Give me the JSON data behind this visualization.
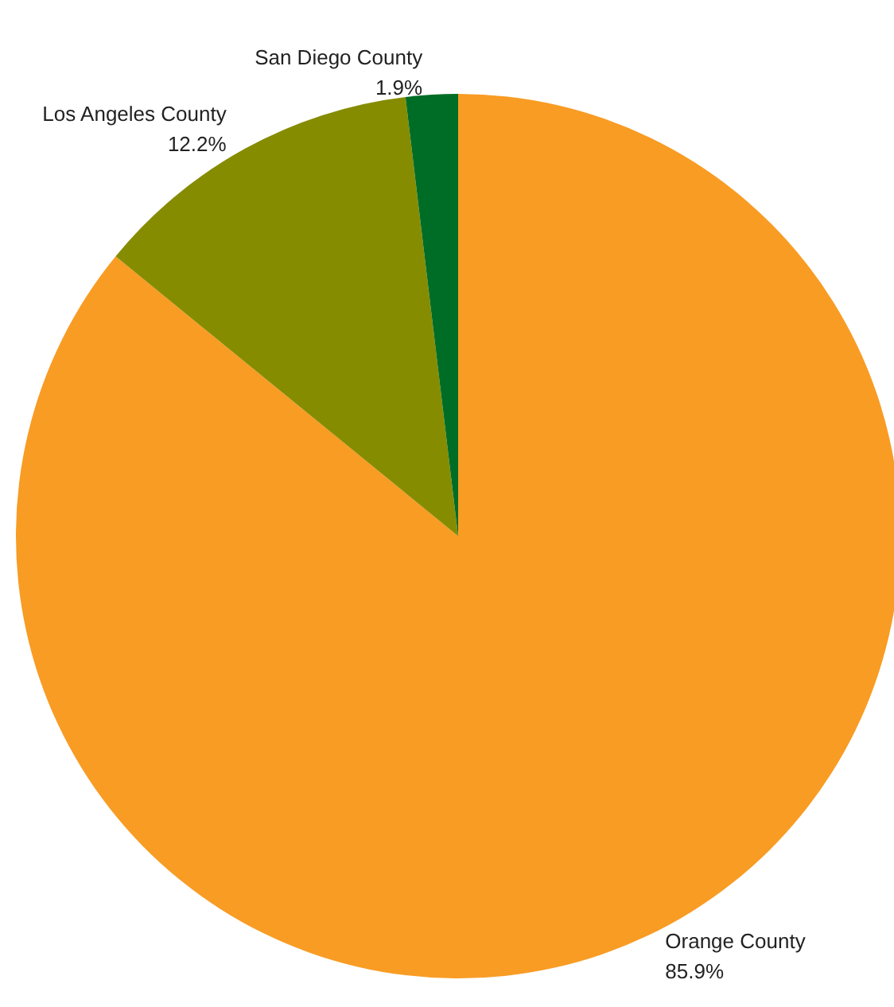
{
  "chart_data": {
    "type": "pie",
    "categories": [
      "Orange County",
      "Los Angeles County",
      "San Diego County"
    ],
    "values": [
      85.9,
      12.2,
      1.9
    ],
    "colors": [
      "#f89c24",
      "#868c00",
      "#006d26"
    ],
    "value_labels": [
      "85.9%",
      "12.2%",
      "1.9%"
    ]
  }
}
